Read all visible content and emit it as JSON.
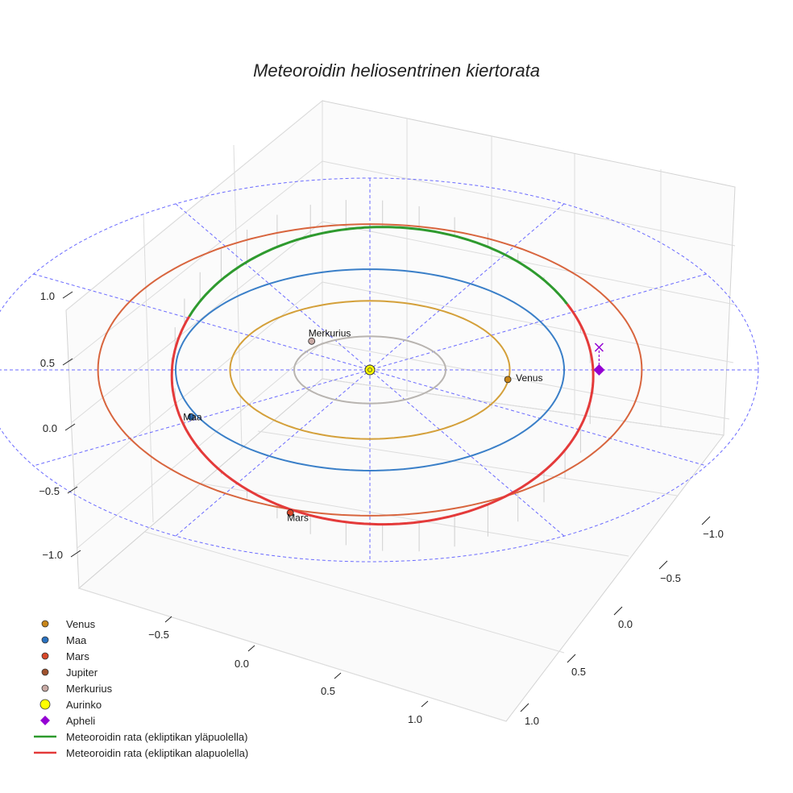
{
  "chart_data": {
    "type": "line",
    "title": "Meteoroidin heliosentrinen kiertorata",
    "projection": "3d",
    "grid": true,
    "legend_position": "bottom-left",
    "axes": {
      "vertical_ticks": [
        "1.0",
        "0.5",
        "0.0",
        "−0.5",
        "−1.0"
      ],
      "front_ticks": [
        "−0.5",
        "0.0",
        "0.5",
        "1.0"
      ],
      "side_ticks": [
        "−1.0",
        "−0.5",
        "0.0",
        "0.5",
        "1.0"
      ]
    },
    "orbits": [
      {
        "name": "Merkurius",
        "semi_major_au": 0.39,
        "color": "#b8b4b0"
      },
      {
        "name": "Venus",
        "semi_major_au": 0.72,
        "color": "#d4a03a"
      },
      {
        "name": "Maa",
        "semi_major_au": 1.0,
        "color": "#3a7fc8"
      },
      {
        "name": "Mars",
        "semi_major_au": 1.52,
        "color": "#d8653e"
      }
    ],
    "meteoroid_orbit": {
      "above_ecliptic": {
        "name": "Meteoroidin rata (ekliptikan yläpuolella)",
        "color": "#2e9a2e"
      },
      "below_ecliptic": {
        "name": "Meteoroidin rata (ekliptikan alapuolella)",
        "color": "#e43a3a"
      }
    },
    "bodies": [
      {
        "name": "Venus",
        "label": "Venus",
        "color": "#c8861a"
      },
      {
        "name": "Maa",
        "label": "Maa",
        "color": "#2a72c0"
      },
      {
        "name": "Mars",
        "label": "Mars",
        "color": "#d8482a"
      },
      {
        "name": "Merkurius",
        "label": "Merkurius",
        "color": "#c8aaa5"
      },
      {
        "name": "Aurinko",
        "label": "",
        "color": "#ffff00"
      },
      {
        "name": "Apheli",
        "label": "",
        "color": "#9400d3"
      }
    ],
    "legend": [
      {
        "label": "Venus",
        "marker": "circle",
        "color": "#c8861a"
      },
      {
        "label": "Maa",
        "marker": "circle",
        "color": "#2a72c0"
      },
      {
        "label": "Mars",
        "marker": "circle",
        "color": "#d8482a"
      },
      {
        "label": "Jupiter",
        "marker": "circle",
        "color": "#a0522d"
      },
      {
        "label": "Merkurius",
        "marker": "circle",
        "color": "#c8aaa5"
      },
      {
        "label": "Aurinko",
        "marker": "circle-large",
        "color": "#ffff00"
      },
      {
        "label": "Apheli",
        "marker": "diamond",
        "color": "#9400d3"
      },
      {
        "label": "Meteoroidin rata (ekliptikan yläpuolella)",
        "marker": "line",
        "color": "#2e9a2e"
      },
      {
        "label": "Meteoroidin rata (ekliptikan alapuolella)",
        "marker": "line",
        "color": "#e43a3a"
      }
    ]
  }
}
